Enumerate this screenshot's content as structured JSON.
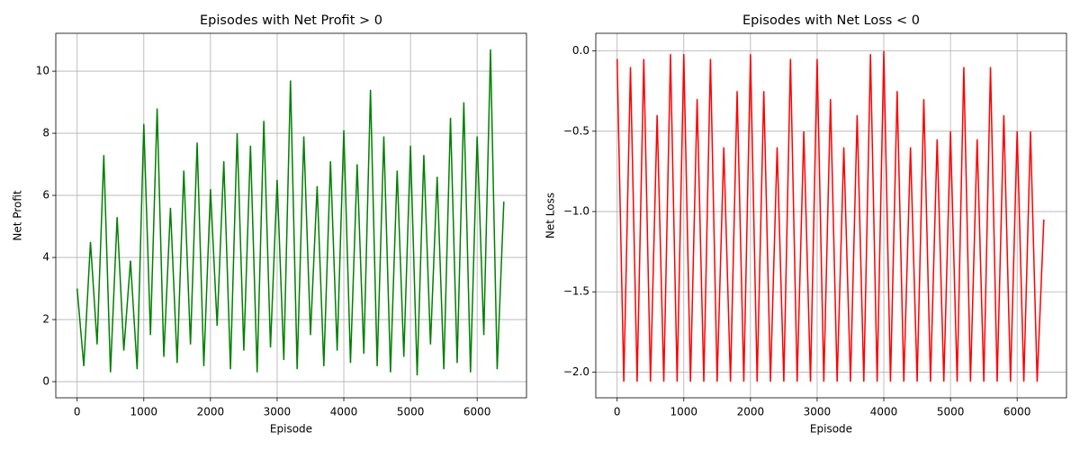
{
  "chart_data": [
    {
      "type": "line",
      "title": "Episodes with Net Profit > 0",
      "x_label": "Episode",
      "y_label": "Net Profit",
      "x": [
        0,
        100,
        200,
        300,
        400,
        500,
        600,
        700,
        800,
        900,
        1000,
        1100,
        1200,
        1300,
        1400,
        1500,
        1600,
        1700,
        1800,
        1900,
        2000,
        2100,
        2200,
        2300,
        2400,
        2500,
        2600,
        2700,
        2800,
        2900,
        3000,
        3100,
        3200,
        3300,
        3400,
        3500,
        3600,
        3700,
        3800,
        3900,
        4000,
        4100,
        4200,
        4300,
        4400,
        4500,
        4600,
        4700,
        4800,
        4900,
        5000,
        5100,
        5200,
        5300,
        5400,
        5500,
        5600,
        5700,
        5800,
        5900,
        6000,
        6100,
        6200,
        6300,
        6400
      ],
      "series": [
        {
          "color": "#008000",
          "values": [
            3.0,
            0.5,
            4.5,
            1.2,
            7.3,
            0.3,
            5.3,
            1.0,
            3.9,
            0.4,
            8.3,
            1.5,
            8.8,
            0.8,
            5.6,
            0.6,
            6.8,
            1.2,
            7.7,
            0.5,
            6.2,
            1.8,
            7.1,
            0.4,
            8.0,
            1.0,
            7.6,
            0.3,
            8.4,
            1.1,
            6.5,
            0.7,
            9.7,
            0.4,
            7.9,
            1.5,
            6.3,
            0.5,
            7.1,
            1.0,
            8.1,
            0.6,
            7.0,
            0.9,
            9.4,
            0.5,
            7.9,
            0.3,
            6.8,
            0.8,
            7.6,
            0.2,
            7.3,
            1.2,
            6.6,
            0.4,
            8.5,
            0.6,
            9.0,
            0.3,
            7.9,
            1.5,
            10.7,
            0.4,
            5.8
          ]
        }
      ],
      "xlim": [
        -320,
        6740
      ],
      "xticks": [
        0,
        1000,
        2000,
        3000,
        4000,
        5000,
        6000
      ],
      "ylim": [
        -0.52,
        11.22
      ],
      "yticks": [
        0,
        2,
        4,
        6,
        8,
        10
      ],
      "grid": true
    },
    {
      "type": "line",
      "title": "Episodes with Net Loss < 0",
      "x_label": "Episode",
      "y_label": "Net Loss",
      "x": [
        0,
        100,
        200,
        300,
        400,
        500,
        600,
        700,
        800,
        900,
        1000,
        1100,
        1200,
        1300,
        1400,
        1500,
        1600,
        1700,
        1800,
        1900,
        2000,
        2100,
        2200,
        2300,
        2400,
        2500,
        2600,
        2700,
        2800,
        2900,
        3000,
        3100,
        3200,
        3300,
        3400,
        3500,
        3600,
        3700,
        3800,
        3900,
        4000,
        4100,
        4200,
        4300,
        4400,
        4500,
        4600,
        4700,
        4800,
        4900,
        5000,
        5100,
        5200,
        5300,
        5400,
        5500,
        5600,
        5700,
        5800,
        5900,
        6000,
        6100,
        6200,
        6300,
        6400
      ],
      "series": [
        {
          "color": "#ff0000",
          "values": [
            -0.05,
            -2.06,
            -0.1,
            -2.06,
            -0.05,
            -2.06,
            -0.4,
            -2.06,
            -0.02,
            -2.06,
            -0.02,
            -2.06,
            -0.3,
            -2.06,
            -0.05,
            -2.06,
            -0.6,
            -2.06,
            -0.25,
            -2.06,
            -0.02,
            -2.06,
            -0.25,
            -2.06,
            -0.6,
            -2.06,
            -0.05,
            -2.06,
            -0.5,
            -2.06,
            -0.05,
            -2.06,
            -0.3,
            -2.06,
            -0.6,
            -2.06,
            -0.4,
            -2.06,
            -0.02,
            -2.06,
            0,
            -2.06,
            -0.25,
            -2.06,
            -0.6,
            -2.06,
            -0.3,
            -2.06,
            -0.55,
            -2.06,
            -0.5,
            -2.06,
            -0.1,
            -2.06,
            -0.55,
            -2.06,
            -0.1,
            -2.06,
            -0.4,
            -2.06,
            -0.5,
            -2.06,
            -0.5,
            -2.06,
            -1.05
          ]
        }
      ],
      "xlim": [
        -320,
        6740
      ],
      "xticks": [
        0,
        1000,
        2000,
        3000,
        4000,
        5000,
        6000
      ],
      "ylim": [
        -2.16,
        0.11
      ],
      "yticks": [
        {
          "value": -2,
          "label": "−2.0"
        },
        {
          "value": -1.5,
          "label": "−1.5"
        },
        {
          "value": -1,
          "label": "−1.0"
        },
        {
          "value": -0.5,
          "label": "−0.5"
        },
        {
          "value": 0,
          "label": "0.0"
        }
      ],
      "grid": true
    }
  ]
}
